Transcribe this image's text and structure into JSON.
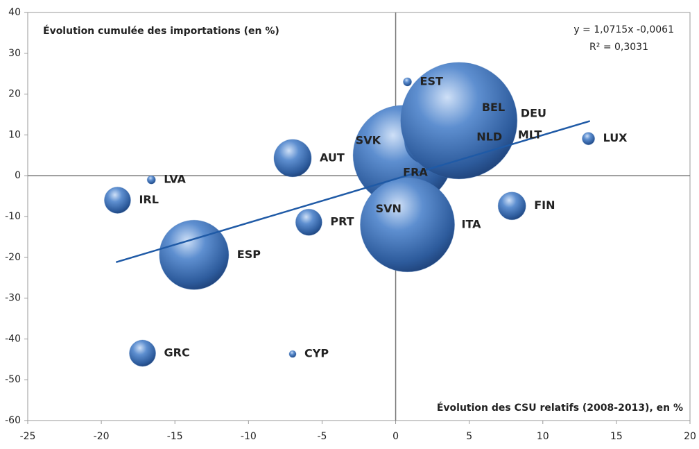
{
  "chart_data": {
    "type": "bubble",
    "y_title": "Évolution cumulée des importations (en %)",
    "x_title": "Évolution des CSU relatifs (2008-2013), en %",
    "annotations": [
      "y = 1,0715x -0,0061",
      "R² = 0,3031"
    ],
    "labels": [
      "EST",
      "MLT",
      "LUX",
      "SVK",
      "AUT",
      "LVA",
      "IRL",
      "SVN",
      "PRT",
      "FIN",
      "ESP",
      "GRC",
      "CYP",
      "FRA",
      "ITA",
      "NLD",
      "BEL",
      "DEU"
    ],
    "x": [
      0.8,
      7.6,
      13.1,
      0.1,
      -7,
      -16.6,
      -18.9,
      -1.6,
      -5.9,
      7.9,
      -13.7,
      -17.2,
      -7,
      0.5,
      0.8,
      2.2,
      3.5,
      4.3
    ],
    "y": [
      23,
      9.9,
      9.1,
      8.5,
      4.3,
      -1,
      -6,
      -11.6,
      -11.4,
      -7.4,
      -19.4,
      -43.5,
      -43.7,
      5,
      -12,
      8.5,
      11,
      13.5
    ],
    "sizes": [
      6,
      3,
      9,
      11,
      27,
      6,
      19,
      8,
      19,
      20,
      50,
      19,
      5,
      72,
      68,
      34,
      30,
      84
    ],
    "color": "#3d6fb5",
    "trendline": {
      "x": [
        -19,
        13.2
      ],
      "y": [
        -21.2,
        13.4
      ],
      "color": "#1f5aa6"
    },
    "xlim": [
      -25,
      20
    ],
    "xticks": [
      -25,
      -20,
      -15,
      -10,
      -5,
      0,
      5,
      10,
      15,
      20
    ],
    "ylim": [
      -60,
      40
    ],
    "yticks": [
      -60,
      -50,
      -40,
      -30,
      -20,
      -10,
      0,
      10,
      20,
      30,
      40
    ]
  }
}
